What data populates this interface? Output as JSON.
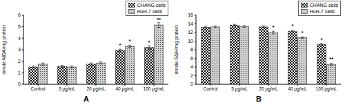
{
  "chart_data": [
    {
      "type": "bar",
      "title": "A",
      "categories": [
        "Control",
        "5 μg/mL",
        "20 μg/mL",
        "40 μg/mL",
        "100 μg/mL"
      ],
      "ylabel": "nmole MDA/mg protein",
      "ylim": [
        0,
        6
      ],
      "yticks": [
        0,
        1,
        2,
        3,
        4,
        5,
        6
      ],
      "legend": "upper right",
      "series": [
        {
          "name": "CHANG cells",
          "color": "#000000",
          "values": [
            1.5,
            1.55,
            1.75,
            2.95,
            3.2
          ],
          "errors": [
            0.1,
            0.1,
            0.1,
            0.1,
            0.15
          ],
          "annotations": [
            null,
            null,
            null,
            "*",
            "*"
          ]
        },
        {
          "name": "HuH-7 cells",
          "color": "#d0d0d0",
          "values": [
            1.75,
            1.5,
            1.85,
            3.3,
            5.15
          ],
          "errors": [
            0.1,
            0.1,
            0.1,
            0.1,
            0.2
          ],
          "annotations": [
            null,
            null,
            null,
            "*",
            "**"
          ]
        }
      ]
    },
    {
      "type": "bar",
      "title": "B",
      "categories": [
        "Control",
        "5 μg/mL",
        "20 μg/mL",
        "40 μg/mL",
        "100 μg/mL"
      ],
      "ylabel": "nmole GSH/mg protein",
      "ylim": [
        0,
        16
      ],
      "yticks": [
        0,
        2,
        4,
        6,
        8,
        10,
        12,
        14,
        16
      ],
      "legend": "upper right",
      "series": [
        {
          "name": "CHANG cells",
          "color": "#000000",
          "values": [
            13.2,
            13.7,
            13.3,
            12.3,
            9.2
          ],
          "errors": [
            0.2,
            0.2,
            0.2,
            0.2,
            0.3
          ],
          "annotations": [
            null,
            null,
            null,
            "*",
            "*"
          ]
        },
        {
          "name": "HuH-7 cells",
          "color": "#d0d0d0",
          "values": [
            13.3,
            13.4,
            12.0,
            10.8,
            4.6
          ],
          "errors": [
            0.2,
            0.2,
            0.3,
            0.2,
            0.3
          ],
          "annotations": [
            null,
            null,
            "*",
            "*",
            "**"
          ]
        }
      ]
    }
  ]
}
